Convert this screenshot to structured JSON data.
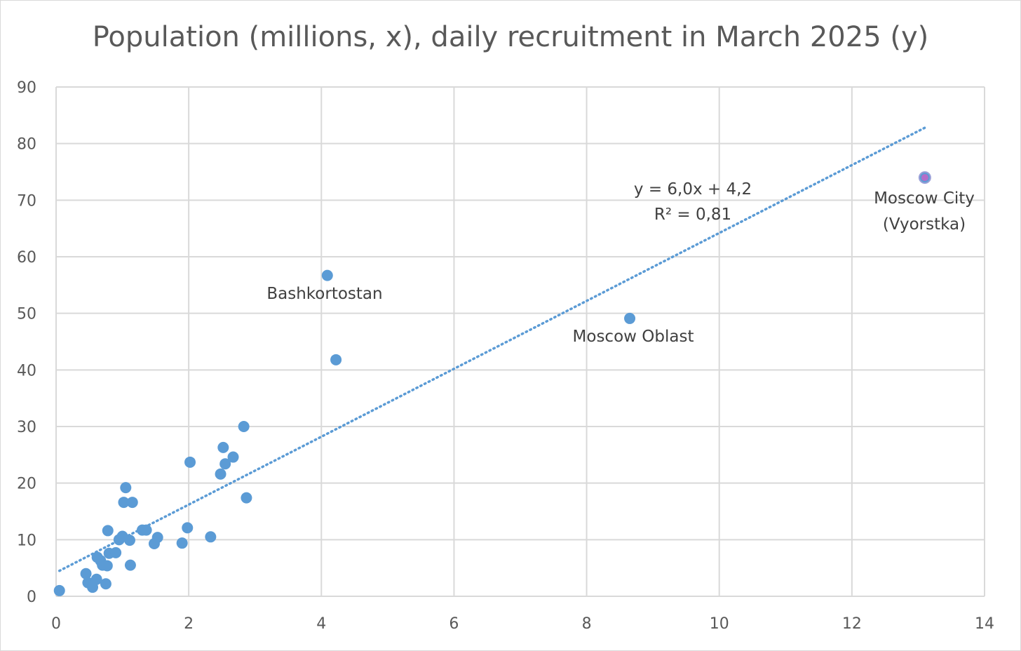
{
  "chart_data": {
    "type": "scatter",
    "title": "Population (millions, x), daily recruitment in March 2025 (y)",
    "xlabel": "",
    "ylabel": "",
    "xlim": [
      0,
      14
    ],
    "ylim": [
      0,
      90
    ],
    "x_ticks": [
      "0",
      "2",
      "4",
      "6",
      "8",
      "10",
      "12",
      "14"
    ],
    "y_ticks": [
      "0",
      "10",
      "20",
      "30",
      "40",
      "50",
      "60",
      "70",
      "80",
      "90"
    ],
    "x_tick_values": [
      0,
      2,
      4,
      6,
      8,
      10,
      12,
      14
    ],
    "y_tick_values": [
      0,
      10,
      20,
      30,
      40,
      50,
      60,
      70,
      80,
      90
    ],
    "grid": true,
    "legend": "none",
    "colors": {
      "points": "#5b9bd5",
      "highlight_point": "#b46dc8",
      "trendline": "#5b9bd5",
      "grid": "#d9d9d9",
      "text": "#595959"
    },
    "points": [
      {
        "x": 0.05,
        "y": 1.0
      },
      {
        "x": 0.45,
        "y": 4.0
      },
      {
        "x": 0.48,
        "y": 2.4
      },
      {
        "x": 0.53,
        "y": 2.2
      },
      {
        "x": 0.55,
        "y": 1.6
      },
      {
        "x": 0.61,
        "y": 3.0
      },
      {
        "x": 0.62,
        "y": 6.9
      },
      {
        "x": 0.67,
        "y": 6.3
      },
      {
        "x": 0.7,
        "y": 5.5
      },
      {
        "x": 0.75,
        "y": 2.2
      },
      {
        "x": 0.77,
        "y": 5.4
      },
      {
        "x": 0.78,
        "y": 11.6
      },
      {
        "x": 0.8,
        "y": 7.6
      },
      {
        "x": 0.9,
        "y": 7.7
      },
      {
        "x": 0.95,
        "y": 10.0
      },
      {
        "x": 1.0,
        "y": 10.6
      },
      {
        "x": 1.02,
        "y": 16.6
      },
      {
        "x": 1.05,
        "y": 19.2
      },
      {
        "x": 1.11,
        "y": 9.9
      },
      {
        "x": 1.12,
        "y": 5.5
      },
      {
        "x": 1.15,
        "y": 16.6
      },
      {
        "x": 1.3,
        "y": 11.7
      },
      {
        "x": 1.36,
        "y": 11.7
      },
      {
        "x": 1.48,
        "y": 9.3
      },
      {
        "x": 1.53,
        "y": 10.4
      },
      {
        "x": 1.9,
        "y": 9.4
      },
      {
        "x": 1.98,
        "y": 12.1
      },
      {
        "x": 2.02,
        "y": 23.7
      },
      {
        "x": 2.33,
        "y": 10.5
      },
      {
        "x": 2.48,
        "y": 21.6
      },
      {
        "x": 2.52,
        "y": 26.3
      },
      {
        "x": 2.55,
        "y": 23.4
      },
      {
        "x": 2.67,
        "y": 24.6
      },
      {
        "x": 2.83,
        "y": 30.0
      },
      {
        "x": 2.87,
        "y": 17.4
      },
      {
        "x": 4.09,
        "y": 56.7
      },
      {
        "x": 4.22,
        "y": 41.8
      },
      {
        "x": 8.65,
        "y": 49.1
      },
      {
        "x": 13.1,
        "y": 74.0,
        "highlight": true
      }
    ],
    "point_labels": [
      {
        "text": "Bashkortostan",
        "x": 4.09,
        "y": 56.7
      },
      {
        "text": "Moscow Oblast",
        "x": 8.65,
        "y": 49.1
      },
      {
        "text_line1": "Moscow City",
        "text_line2": "(Vyorstka)",
        "x": 13.1,
        "y": 74.0
      }
    ],
    "trendline": {
      "type": "linear",
      "slope": 6.0,
      "intercept": 4.2,
      "x_range": [
        0.05,
        13.1
      ],
      "equation": "y = 6,0x + 4,2",
      "r_squared": "R² = 0,81"
    }
  }
}
